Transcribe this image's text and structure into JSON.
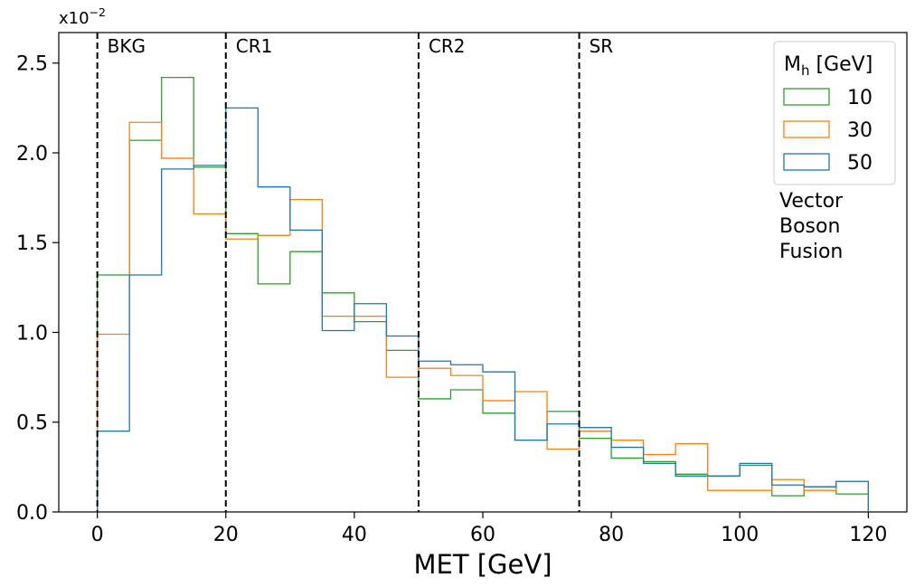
{
  "chart_data": {
    "type": "histogram-step",
    "xlabel": "MET [GeV]",
    "ylabel": "",
    "y_scale_label": {
      "base": "x10",
      "exponent": "−2"
    },
    "xlim": [
      -6,
      126
    ],
    "ylim": [
      0,
      2.67
    ],
    "x_ticks": [
      {
        "value": 0,
        "label": "0"
      },
      {
        "value": 20,
        "label": "20"
      },
      {
        "value": 40,
        "label": "40"
      },
      {
        "value": 60,
        "label": "60"
      },
      {
        "value": 80,
        "label": "80"
      },
      {
        "value": 100,
        "label": "100"
      },
      {
        "value": 120,
        "label": "120"
      }
    ],
    "y_ticks": [
      {
        "value": 0.0,
        "label": "0.0"
      },
      {
        "value": 0.5,
        "label": "0.5"
      },
      {
        "value": 1.0,
        "label": "1.0"
      },
      {
        "value": 1.5,
        "label": "1.5"
      },
      {
        "value": 2.0,
        "label": "2.0"
      },
      {
        "value": 2.5,
        "label": "2.5"
      }
    ],
    "bin_edges": [
      0,
      5,
      10,
      15,
      20,
      25,
      30,
      35,
      40,
      45,
      50,
      55,
      60,
      65,
      70,
      75,
      80,
      85,
      90,
      95,
      100,
      105,
      110,
      115,
      120
    ],
    "series": [
      {
        "name": "10",
        "color": "#2ca02c",
        "values": [
          1.32,
          2.07,
          2.42,
          1.92,
          1.55,
          1.27,
          1.45,
          1.22,
          1.06,
          0.9,
          0.63,
          0.68,
          0.55,
          0.4,
          0.56,
          0.41,
          0.3,
          0.28,
          0.21,
          0.2,
          0.26,
          0.09,
          0.14,
          0.1
        ]
      },
      {
        "name": "30",
        "color": "#ff7f0e",
        "values": [
          0.99,
          2.17,
          1.97,
          1.66,
          1.52,
          1.54,
          1.74,
          1.09,
          1.09,
          0.75,
          0.8,
          0.76,
          0.62,
          0.67,
          0.35,
          0.45,
          0.4,
          0.32,
          0.38,
          0.12,
          0.12,
          0.18,
          0.12,
          0.17
        ]
      },
      {
        "name": "50",
        "color": "#1f77b4",
        "values": [
          0.45,
          1.32,
          1.91,
          1.93,
          2.25,
          1.81,
          1.57,
          1.01,
          1.16,
          0.98,
          0.84,
          0.82,
          0.78,
          0.4,
          0.49,
          0.47,
          0.36,
          0.27,
          0.2,
          0.2,
          0.27,
          0.15,
          0.14,
          0.17
        ]
      }
    ],
    "region_lines": [
      {
        "x": 0,
        "label": "BKG"
      },
      {
        "x": 20,
        "label": "CR1"
      },
      {
        "x": 50,
        "label": "CR2"
      },
      {
        "x": 75,
        "label": "SR"
      }
    ],
    "legend": {
      "position": "top-right",
      "title_main": "M",
      "title_sub": "h",
      "title_unit": " [GeV]"
    },
    "annotation_lines": [
      "Vector",
      "Boson",
      "Fusion"
    ],
    "grid": false
  }
}
